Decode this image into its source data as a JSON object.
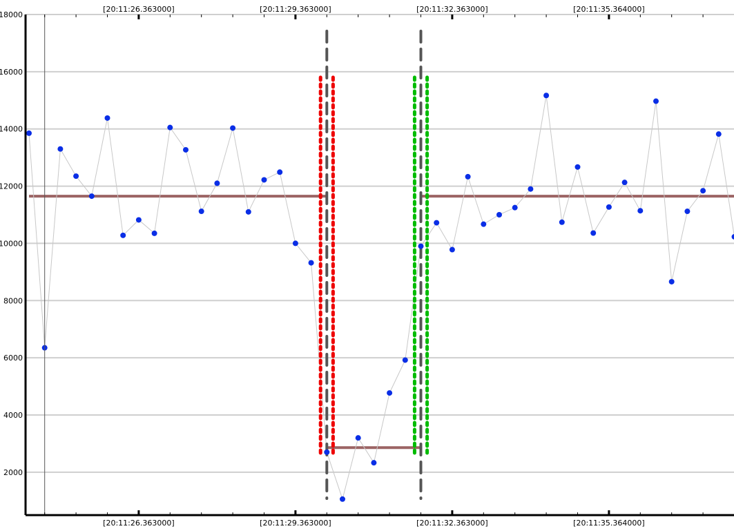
{
  "chart_data": {
    "type": "scatter",
    "title": "",
    "xlabel": "",
    "ylabel": "",
    "ylim": [
      500,
      18000
    ],
    "y_ticks": [
      2000,
      4000,
      6000,
      8000,
      10000,
      12000,
      14000,
      16000,
      18000
    ],
    "y_tick_labels": [
      "2000",
      "4000",
      "6000",
      "8000",
      "10000",
      "12000",
      "14000",
      "16000",
      "18000"
    ],
    "x_time_labels": [
      "[20:11:26.363000]",
      "[20:11:29.363000]",
      "[20:11:32.363000]",
      "[20:11:35.364000]"
    ],
    "x_time_label_index": [
      7,
      17,
      27,
      37
    ],
    "grid": true,
    "cursor_index": 1,
    "series": [
      {
        "color": "#0a2ee6",
        "line_color": "#c8c8c8",
        "values": [
          13850,
          6350,
          13300,
          12350,
          11650,
          14380,
          10280,
          10820,
          10350,
          14050,
          13270,
          11120,
          12100,
          14030,
          11100,
          12220,
          12490,
          10000,
          9320,
          2700,
          1060,
          3200,
          2330,
          4770,
          5920,
          9900,
          10720,
          9780,
          12330,
          10670,
          11000,
          11250,
          11900,
          15170,
          10740,
          12670,
          10360,
          11270,
          12130,
          11140,
          14970,
          8660,
          11120,
          11840,
          13820,
          10230
        ]
      }
    ],
    "segments": [
      {
        "start_index": 0,
        "end_index": 19,
        "level": 11650,
        "color": "#9c6464"
      },
      {
        "start_index": 19,
        "end_index": 25,
        "level": 2860,
        "color": "#9c6464"
      },
      {
        "start_index": 25,
        "end_index": 47,
        "level": 11650,
        "color": "#9c6464"
      }
    ],
    "change_points": [
      {
        "index": 19,
        "ci_low": 18.6,
        "ci_high": 19.4,
        "ci_color": "#ee0000",
        "line_color": "#555555"
      },
      {
        "index": 25,
        "ci_low": 24.6,
        "ci_high": 25.4,
        "ci_color": "#00bb00",
        "line_color": "#555555"
      }
    ]
  }
}
